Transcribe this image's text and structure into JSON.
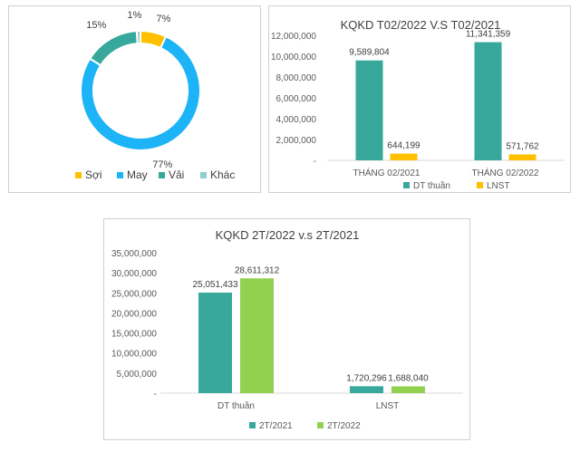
{
  "chart_data": [
    {
      "type": "pie",
      "donut": true,
      "categories": [
        "Sợi",
        "May",
        "Vải",
        "Khác"
      ],
      "values": [
        7,
        77,
        15,
        1
      ],
      "labels": [
        "7%",
        "77%",
        "15%",
        "1%"
      ],
      "colors": [
        "#FFC000",
        "#1CB4F6",
        "#37A89B",
        "#8FCFCB"
      ],
      "legend": "bottom"
    },
    {
      "type": "bar",
      "title": "KQKD T02/2022 V.S T02/2021",
      "categories": [
        "THÁNG 02/2021",
        "THÁNG 02/2022"
      ],
      "series": [
        {
          "name": "DT thuần",
          "values": [
            9589804,
            11341359
          ],
          "labels": [
            "9,589,804",
            "11,341,359"
          ],
          "color": "#37A89B"
        },
        {
          "name": "LNST",
          "values": [
            644199,
            571762
          ],
          "labels": [
            "644,199",
            "571,762"
          ],
          "color": "#FFC000"
        }
      ],
      "ylim": [
        0,
        12000000
      ],
      "yticks": [
        "-",
        "2,000,000",
        "4,000,000",
        "6,000,000",
        "8,000,000",
        "10,000,000",
        "12,000,000"
      ],
      "legend": "bottom"
    },
    {
      "type": "bar",
      "title": "KQKD 2T/2022 v.s 2T/2021",
      "categories": [
        "DT thuần",
        "LNST"
      ],
      "series": [
        {
          "name": "2T/2021",
          "values": [
            25051433,
            1720296
          ],
          "labels": [
            "25,051,433",
            "1,720,296"
          ],
          "color": "#37A89B"
        },
        {
          "name": "2T/2022",
          "values": [
            28611312,
            1688040
          ],
          "labels": [
            "28,611,312",
            "1,688,040"
          ],
          "color": "#92D050"
        }
      ],
      "ylim": [
        0,
        35000000
      ],
      "yticks": [
        "-",
        "5,000,000",
        "10,000,000",
        "15,000,000",
        "20,000,000",
        "25,000,000",
        "30,000,000",
        "35,000,000"
      ],
      "legend": "bottom"
    }
  ]
}
